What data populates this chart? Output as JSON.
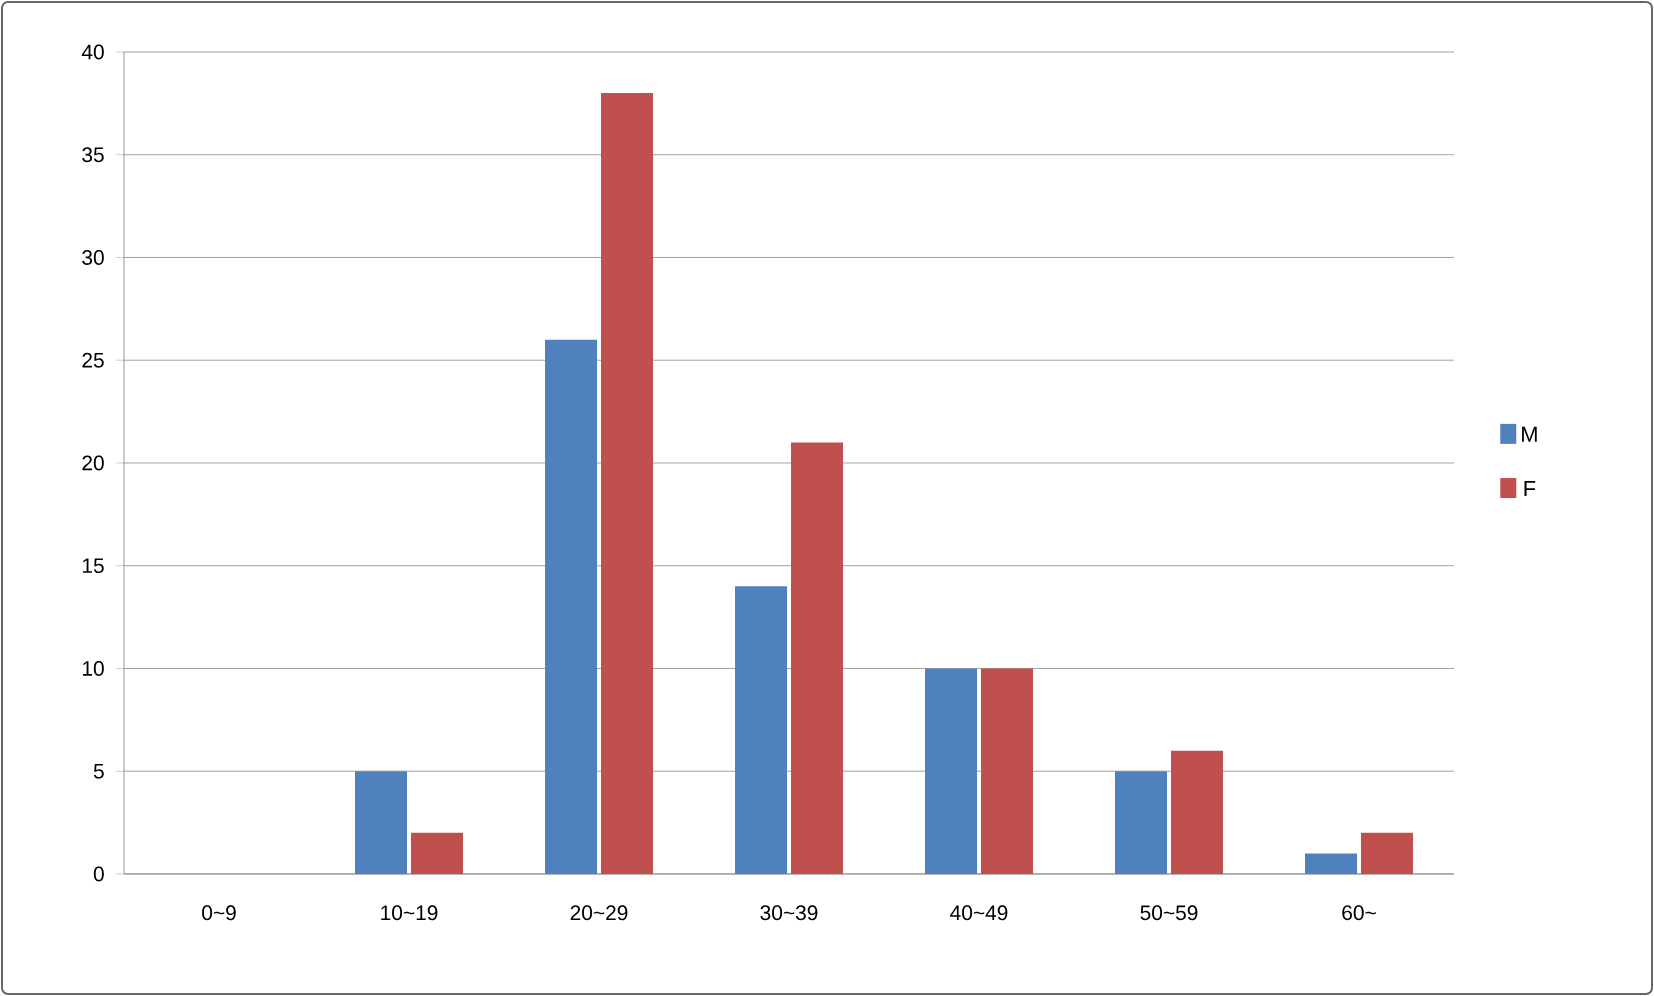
{
  "chart_data": {
    "type": "bar",
    "categories": [
      "0~9",
      "10~19",
      "20~29",
      "30~39",
      "40~49",
      "50~59",
      "60~"
    ],
    "series": [
      {
        "name": "M",
        "color": "#4f81bd",
        "values": [
          0,
          5,
          26,
          14,
          10,
          5,
          1
        ]
      },
      {
        "name": "F",
        "color": "#c0504d",
        "values": [
          0,
          2,
          38,
          21,
          10,
          6,
          2
        ]
      }
    ],
    "ylim": [
      0,
      40
    ],
    "yticks": [
      0,
      5,
      10,
      15,
      20,
      25,
      30,
      35,
      40
    ],
    "grid": "y",
    "legend": "right"
  }
}
